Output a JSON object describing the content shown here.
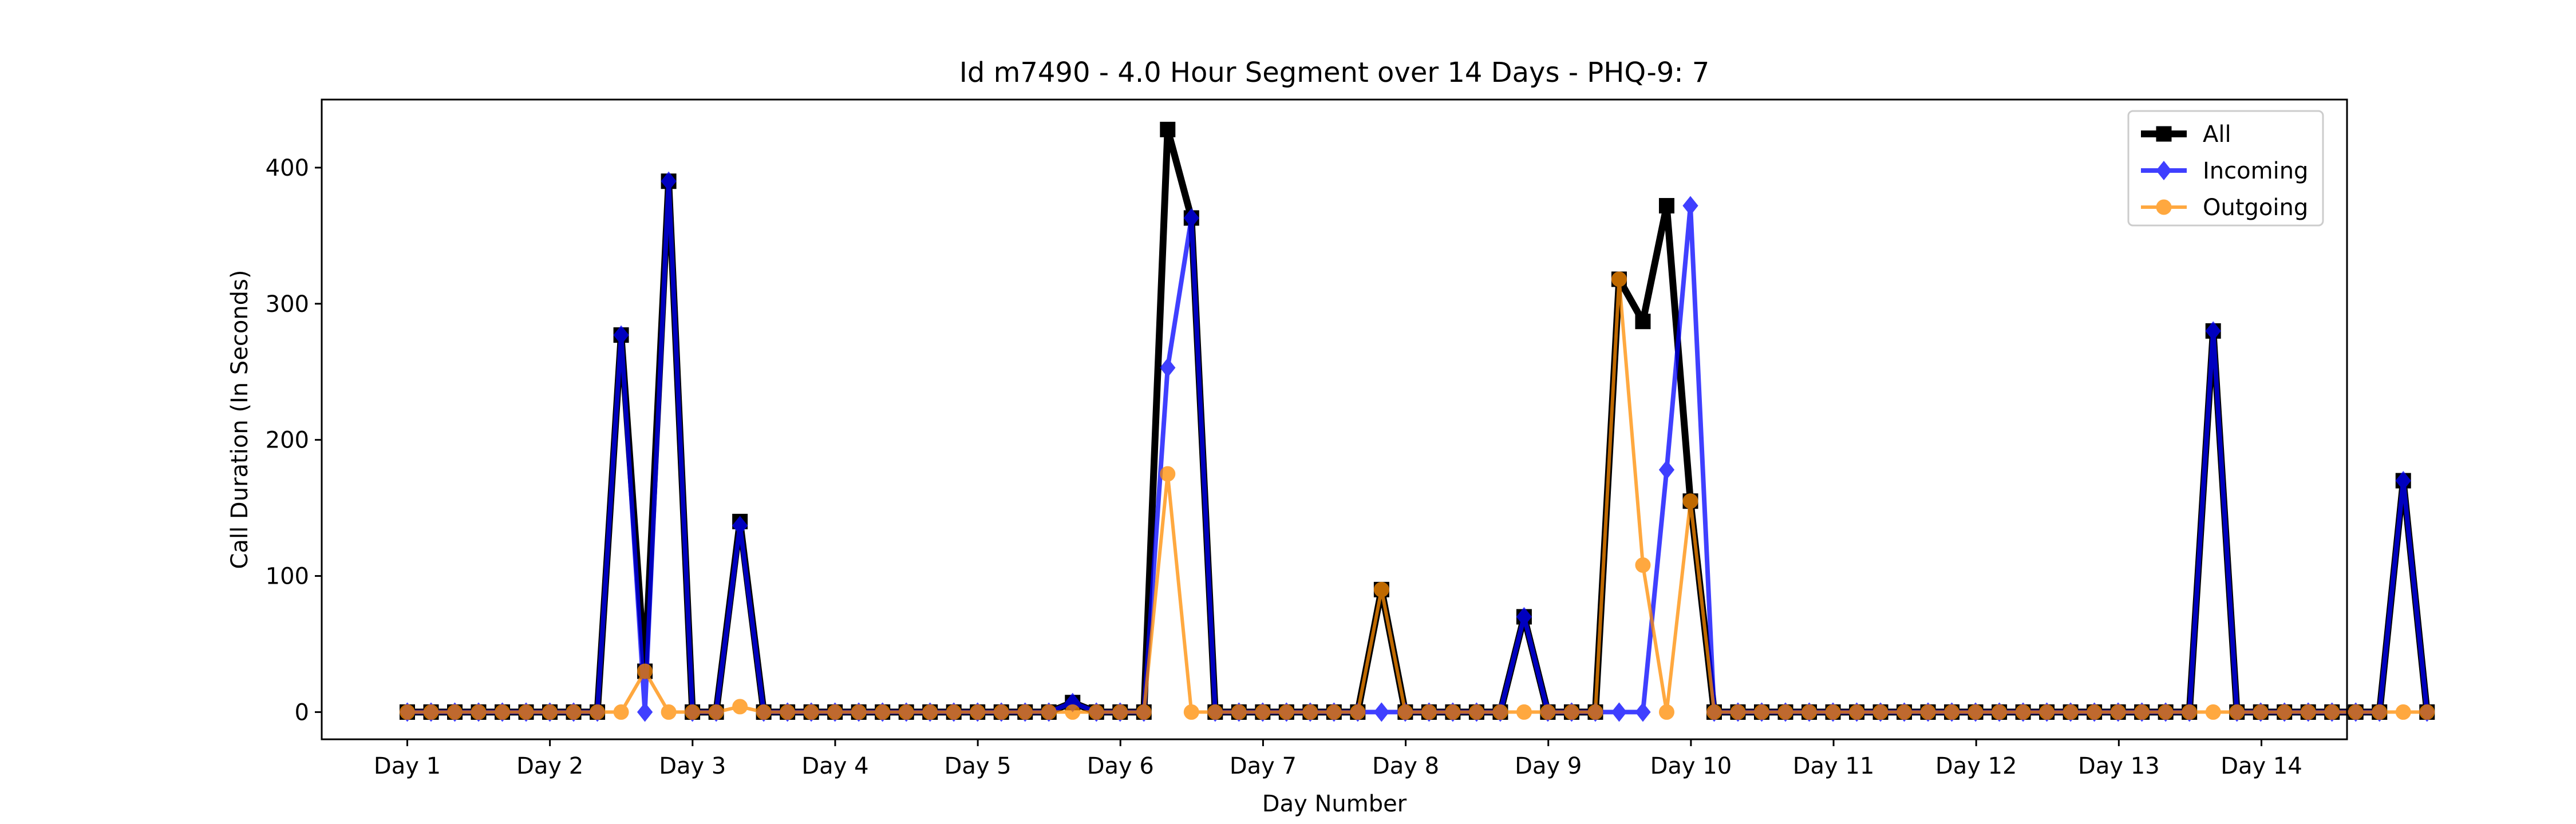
{
  "chart_data": {
    "type": "line",
    "title": "Id m7490 - 4.0 Hour Segment over 14 Days - PHQ-9: 7",
    "xlabel": "Day Number",
    "ylabel": "Call Duration (In Seconds)",
    "xlim": [
      -0.3,
      6.8
    ],
    "ylim": [
      -20,
      450
    ],
    "grid": false,
    "legend_position": "top-right",
    "x_ticks": [
      {
        "value": 0,
        "label": "Day 1"
      },
      {
        "value": 0.5,
        "label": "Day 2"
      },
      {
        "value": 1.0,
        "label": "Day 3"
      },
      {
        "value": 1.5,
        "label": "Day 4"
      },
      {
        "value": 2.0,
        "label": "Day 5"
      },
      {
        "value": 2.5,
        "label": "Day 6"
      },
      {
        "value": 3.0,
        "label": "Day 7"
      },
      {
        "value": 3.5,
        "label": "Day 8"
      },
      {
        "value": 4.0,
        "label": "Day 9"
      },
      {
        "value": 4.5,
        "label": "Day 10"
      },
      {
        "value": 5.0,
        "label": "Day 11"
      },
      {
        "value": 5.5,
        "label": "Day 12"
      },
      {
        "value": 6.0,
        "label": "Day 13"
      },
      {
        "value": 6.5,
        "label": "Day 14"
      }
    ],
    "y_ticks": [
      {
        "value": 0,
        "label": "0"
      },
      {
        "value": 100,
        "label": "100"
      },
      {
        "value": 200,
        "label": "200"
      },
      {
        "value": 300,
        "label": "300"
      },
      {
        "value": 400,
        "label": "400"
      }
    ],
    "x_step": 0.0833,
    "series": [
      {
        "name": "All",
        "color": "#000000",
        "marker": "square",
        "values": [
          0,
          0,
          0,
          0,
          0,
          0,
          0,
          0,
          0,
          277,
          30,
          390,
          0,
          0,
          140,
          0,
          0,
          0,
          0,
          0,
          0,
          0,
          0,
          0,
          0,
          0,
          0,
          0,
          7,
          0,
          0,
          0,
          428,
          363,
          0,
          0,
          0,
          0,
          0,
          0,
          0,
          90,
          0,
          0,
          0,
          0,
          0,
          70,
          0,
          0,
          0,
          318,
          287,
          372,
          155,
          0,
          0,
          0,
          0,
          0,
          0,
          0,
          0,
          0,
          0,
          0,
          0,
          0,
          0,
          0,
          0,
          0,
          0,
          0,
          0,
          0,
          280,
          0,
          0,
          0,
          0,
          0,
          0,
          0,
          170,
          0
        ]
      },
      {
        "name": "Incoming",
        "color": "#0000ff",
        "marker": "diamond",
        "values": [
          0,
          0,
          0,
          0,
          0,
          0,
          0,
          0,
          0,
          277,
          0,
          390,
          0,
          0,
          137,
          0,
          0,
          0,
          0,
          0,
          0,
          0,
          0,
          0,
          0,
          0,
          0,
          0,
          7,
          0,
          0,
          0,
          253,
          363,
          0,
          0,
          0,
          0,
          0,
          0,
          0,
          0,
          0,
          0,
          0,
          0,
          0,
          70,
          0,
          0,
          0,
          0,
          0,
          178,
          372,
          0,
          0,
          0,
          0,
          0,
          0,
          0,
          0,
          0,
          0,
          0,
          0,
          0,
          0,
          0,
          0,
          0,
          0,
          0,
          0,
          0,
          280,
          0,
          0,
          0,
          0,
          0,
          0,
          0,
          170,
          0
        ]
      },
      {
        "name": "Outgoing",
        "color": "#ff8c00",
        "marker": "circle",
        "values": [
          0,
          0,
          0,
          0,
          0,
          0,
          0,
          0,
          0,
          0,
          30,
          0,
          0,
          0,
          4,
          0,
          0,
          0,
          0,
          0,
          0,
          0,
          0,
          0,
          0,
          0,
          0,
          0,
          0,
          0,
          0,
          0,
          175,
          0,
          0,
          0,
          0,
          0,
          0,
          0,
          0,
          90,
          0,
          0,
          0,
          0,
          0,
          0,
          0,
          0,
          0,
          318,
          108,
          0,
          155,
          0,
          0,
          0,
          0,
          0,
          0,
          0,
          0,
          0,
          0,
          0,
          0,
          0,
          0,
          0,
          0,
          0,
          0,
          0,
          0,
          0,
          0,
          0,
          0,
          0,
          0,
          0,
          0,
          0,
          0,
          0
        ]
      }
    ]
  }
}
